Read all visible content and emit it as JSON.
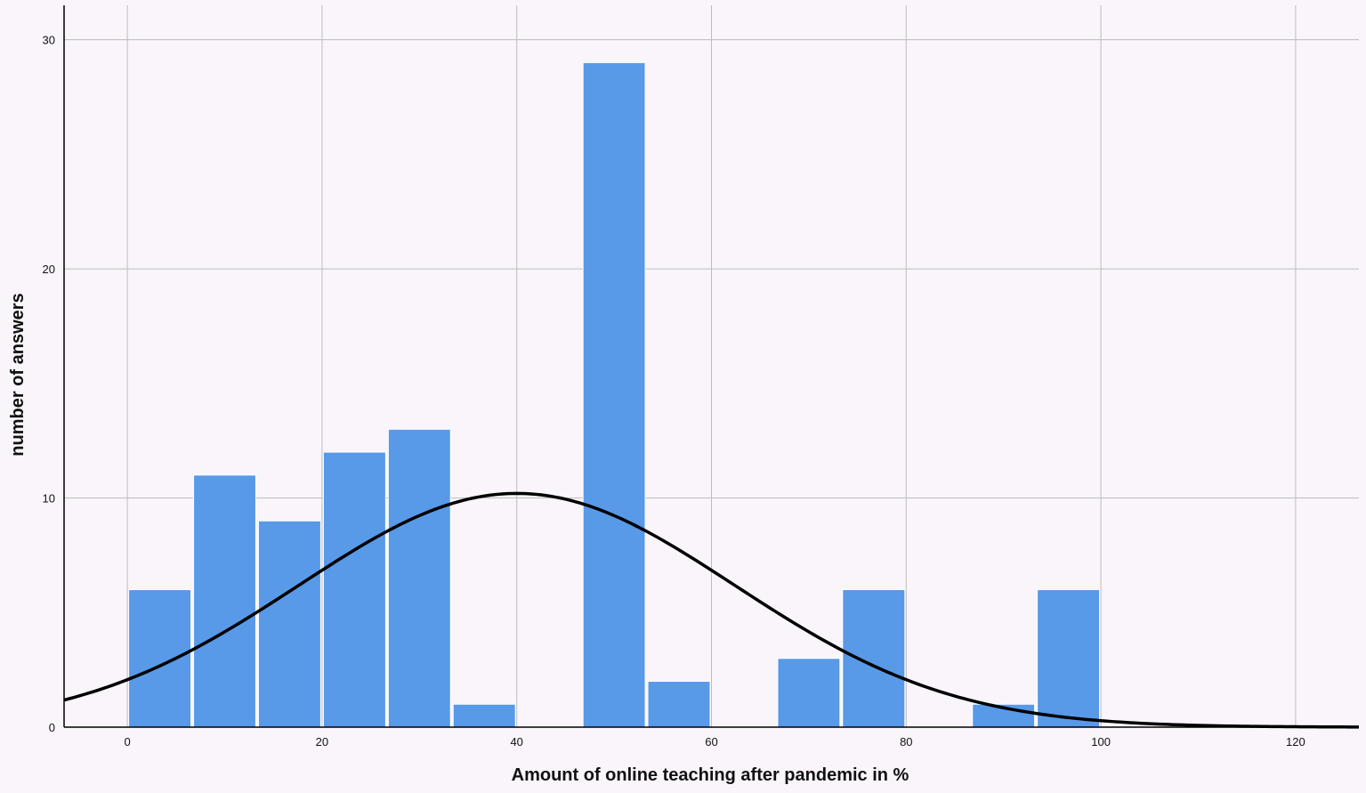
{
  "chart_data": {
    "type": "bar",
    "subtype": "histogram",
    "xlabel": "Amount of online teaching after pandemic in %",
    "ylabel": "number of answers",
    "xlim": [
      -6.5,
      126.5
    ],
    "ylim": [
      0,
      31.5
    ],
    "xticks": [
      0,
      20,
      40,
      60,
      80,
      100,
      120
    ],
    "yticks": [
      0,
      10,
      20,
      30
    ],
    "grid": true,
    "bin_width": 6.67,
    "bins": [
      {
        "x0": 0.0,
        "x1": 6.67,
        "count": 6
      },
      {
        "x0": 6.67,
        "x1": 13.33,
        "count": 11
      },
      {
        "x0": 13.33,
        "x1": 20.0,
        "count": 9
      },
      {
        "x0": 20.0,
        "x1": 26.67,
        "count": 12
      },
      {
        "x0": 26.67,
        "x1": 33.33,
        "count": 13
      },
      {
        "x0": 33.33,
        "x1": 40.0,
        "count": 1
      },
      {
        "x0": 40.0,
        "x1": 46.67,
        "count": 0
      },
      {
        "x0": 46.67,
        "x1": 53.33,
        "count": 29
      },
      {
        "x0": 53.33,
        "x1": 60.0,
        "count": 2
      },
      {
        "x0": 60.0,
        "x1": 66.67,
        "count": 0
      },
      {
        "x0": 66.67,
        "x1": 73.33,
        "count": 3
      },
      {
        "x0": 73.33,
        "x1": 80.0,
        "count": 6
      },
      {
        "x0": 80.0,
        "x1": 86.67,
        "count": 0
      },
      {
        "x0": 86.67,
        "x1": 93.33,
        "count": 1
      },
      {
        "x0": 93.33,
        "x1": 100.0,
        "count": 6
      }
    ],
    "normal_curve": {
      "mean": 40.0,
      "sd": 22.4,
      "peak": 10.2
    },
    "colors": {
      "bar": "#5899e8",
      "bar_edge": "#ffffff",
      "curve": "#000000",
      "grid": "#bdbdbd",
      "axis": "#000000"
    }
  }
}
